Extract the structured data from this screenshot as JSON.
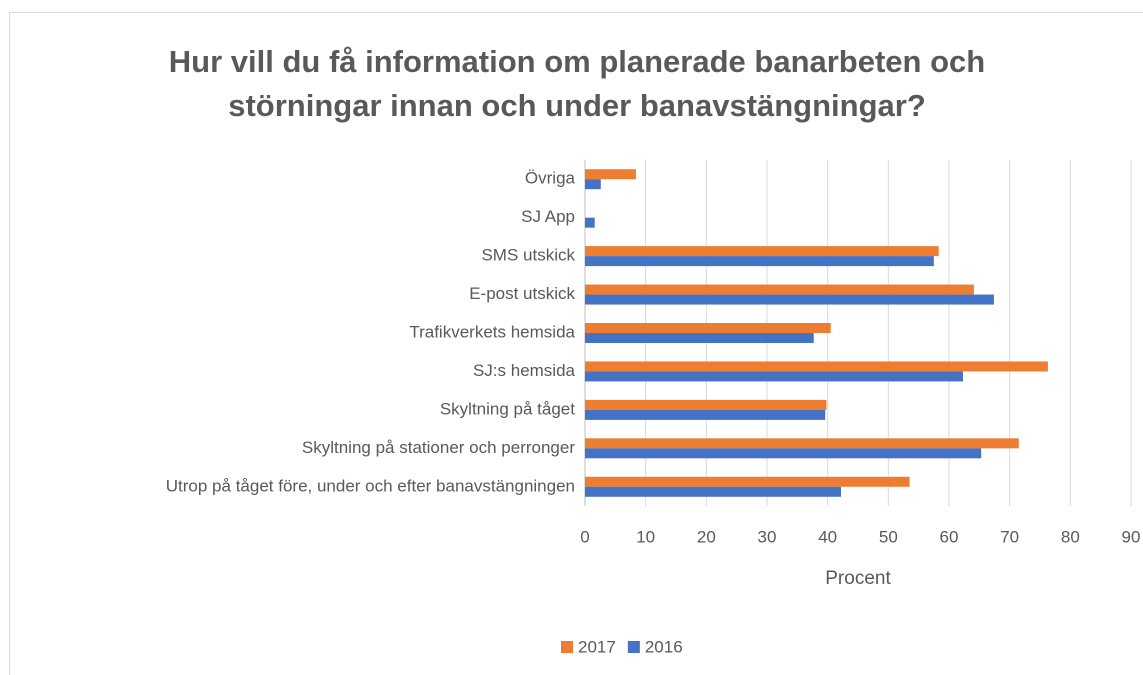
{
  "chart_data": {
    "type": "bar",
    "orientation": "horizontal",
    "title": "Hur vill du få information om planerade banarbeten och störningar innan och under banavstängningar?",
    "categories": [
      "Utrop på tåget före, under och efter banavstängningen",
      "Skyltning på stationer och perronger",
      "Skyltning på tåget",
      "SJ:s hemsida",
      "Trafikverkets hemsida",
      "E-post utskick",
      "SMS utskick",
      "SJ App",
      "Övriga"
    ],
    "series": [
      {
        "name": "2017",
        "color": "#ed7d31",
        "values": [
          53.5,
          71.5,
          39.8,
          76.3,
          40.5,
          64.1,
          58.3,
          0,
          8.4
        ]
      },
      {
        "name": "2016",
        "color": "#4472c4",
        "values": [
          42.2,
          65.3,
          39.6,
          62.3,
          37.7,
          67.4,
          57.5,
          1.6,
          2.6
        ]
      }
    ],
    "x_label": "Procent",
    "xlim": [
      0,
      90
    ],
    "xticks": [
      0,
      10,
      20,
      30,
      40,
      50,
      60,
      70,
      80,
      90
    ],
    "grid": true,
    "legend": "bottom"
  }
}
